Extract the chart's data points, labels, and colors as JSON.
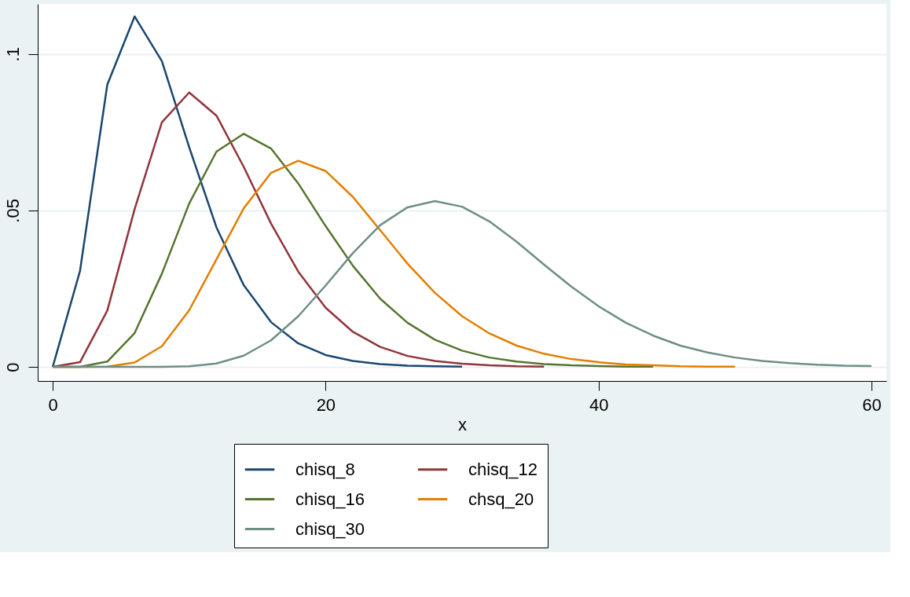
{
  "chart_data": {
    "type": "line",
    "xlabel": "x",
    "x": [
      0,
      2,
      4,
      6,
      8,
      10,
      12,
      14,
      16,
      18,
      20,
      22,
      24,
      26,
      28,
      30,
      32,
      34,
      36,
      38,
      40,
      42,
      44,
      46,
      48,
      50,
      52,
      54,
      56,
      58,
      60
    ],
    "series": [
      {
        "name": "chisq_8",
        "color": "#1a476f",
        "values": [
          0,
          0.0307,
          0.0902,
          0.112,
          0.0977,
          0.0702,
          0.0446,
          0.0261,
          0.0143,
          0.0075,
          0.0038,
          0.0019,
          0.0009,
          0.0004,
          0.0002,
          0.0001,
          null,
          null,
          null,
          null,
          null,
          null,
          null,
          null,
          null,
          null,
          null,
          null,
          null,
          null,
          null
        ]
      },
      {
        "name": "chisq_12",
        "color": "#90353b",
        "values": [
          0,
          0.0015,
          0.018,
          0.0504,
          0.0782,
          0.0877,
          0.0803,
          0.0639,
          0.0458,
          0.0304,
          0.0189,
          0.0112,
          0.0064,
          0.0035,
          0.0019,
          0.001,
          0.0005,
          0.0002,
          0.0001,
          null,
          null,
          null,
          null,
          null,
          null,
          null,
          null,
          null,
          null,
          null,
          null
        ]
      },
      {
        "name": "chisq_16",
        "color": "#55752f",
        "values": [
          0,
          0,
          0.0017,
          0.0108,
          0.0298,
          0.0522,
          0.0688,
          0.0745,
          0.0698,
          0.0586,
          0.045,
          0.0323,
          0.0218,
          0.0141,
          0.0087,
          0.0052,
          0.003,
          0.0017,
          0.0009,
          0.0005,
          0.0003,
          0.0001,
          0.0001,
          null,
          null,
          null,
          null,
          null,
          null,
          null,
          null
        ]
      },
      {
        "name": "chsq_20",
        "color": "#e37e00",
        "values": [
          0,
          0,
          0.0001,
          0.0014,
          0.0066,
          0.0181,
          0.0344,
          0.0507,
          0.062,
          0.0659,
          0.0626,
          0.0543,
          0.0437,
          0.033,
          0.0237,
          0.0162,
          0.0107,
          0.0068,
          0.0042,
          0.0025,
          0.0015,
          0.0008,
          0.0005,
          0.0002,
          0.0001,
          0.0001,
          null,
          null,
          null,
          null,
          null
        ]
      },
      {
        "name": "chisq_30",
        "color": "#6e8e84",
        "values": [
          0,
          0,
          0,
          0,
          0,
          0.0002,
          0.0011,
          0.0036,
          0.0085,
          0.0162,
          0.026,
          0.0364,
          0.0453,
          0.051,
          0.053,
          0.0512,
          0.0465,
          0.04,
          0.0327,
          0.0257,
          0.0194,
          0.0141,
          0.01,
          0.0068,
          0.0046,
          0.003,
          0.0019,
          0.0012,
          0.0007,
          0.0004,
          0.0003
        ]
      }
    ],
    "xlim": [
      -1.1,
      61.1
    ],
    "xticks": [
      0,
      20,
      40,
      60
    ],
    "ylim": [
      -0.0045,
      0.116
    ],
    "yticks": [
      {
        "value": 0,
        "label": "0"
      },
      {
        "value": 0.05,
        "label": ".05"
      },
      {
        "value": 0.1,
        "label": ".1"
      }
    ],
    "grid": "y",
    "legend": "bottom",
    "line_style": "solid",
    "marker": "none"
  }
}
